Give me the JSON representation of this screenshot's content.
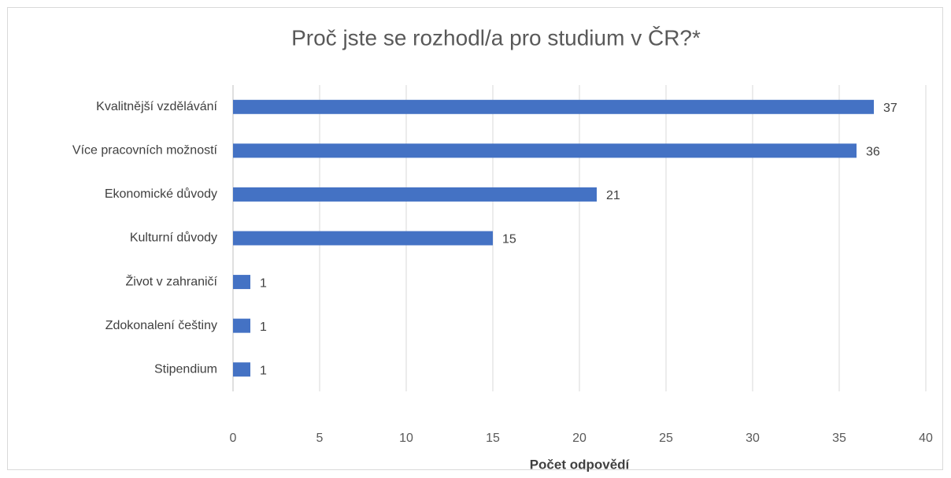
{
  "chart_data": {
    "type": "bar",
    "orientation": "horizontal",
    "title": "Proč jste se rozhodl/a pro studium v ČR?*",
    "x_label": "Počet odpovědí",
    "categories": [
      "Kvalitnější vzdělávání",
      "Více pracovních možností",
      "Ekonomické důvody",
      "Kulturní důvody",
      "Život v zahraničí",
      "Zdokonalení češtiny",
      "Stipendium"
    ],
    "values": [
      37,
      36,
      21,
      15,
      1,
      1,
      1
    ],
    "color": "#4472c4",
    "xlim": [
      0,
      40
    ],
    "xticks": [
      0,
      5,
      10,
      15,
      20,
      25,
      30,
      35,
      40
    ],
    "grid": true
  }
}
